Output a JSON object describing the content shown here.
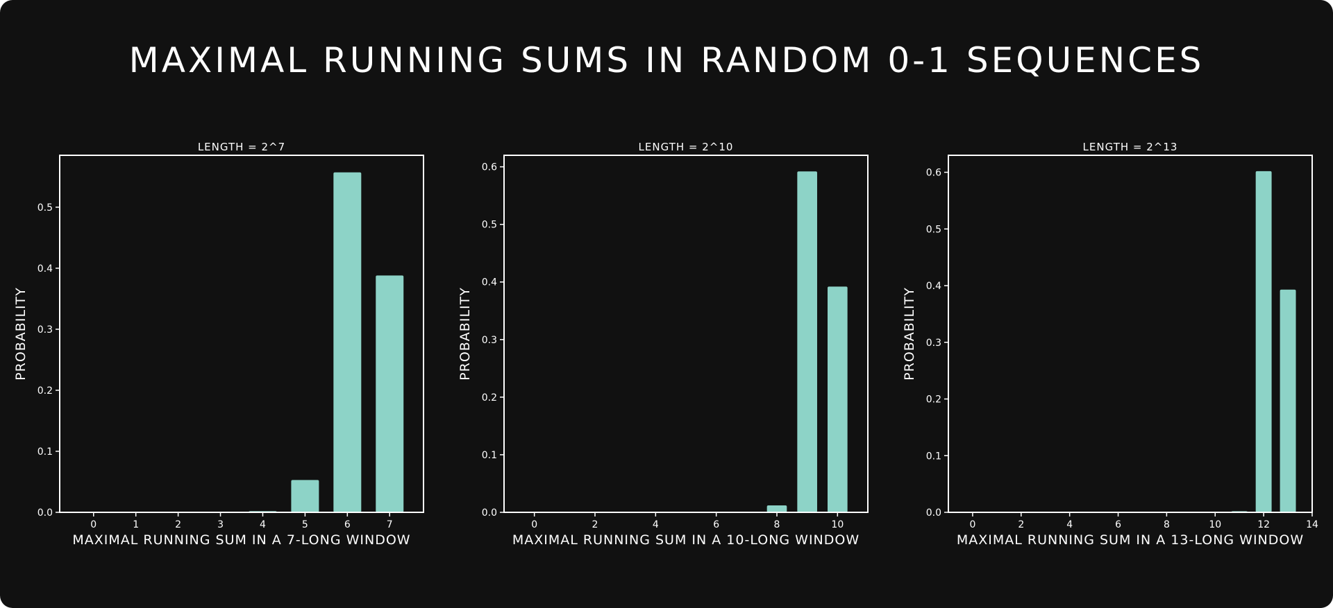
{
  "title": "Maximal running sums in random 0-1 sequences",
  "colors": {
    "background": "#111111",
    "bar": "#8dd3c7",
    "axis": "#ffffff",
    "text": "#ffffff"
  },
  "chart_data": [
    {
      "type": "bar",
      "title": "Length = 2^7",
      "xlabel": "Maximal running sum in a 7-long window",
      "ylabel": "Probability",
      "x": [
        0,
        1,
        2,
        3,
        4,
        5,
        6,
        7
      ],
      "values": [
        0.0,
        0.0,
        0.0,
        0.0,
        0.002,
        0.053,
        0.557,
        0.388
      ],
      "xlim": [
        -0.8,
        7.8
      ],
      "ylim": [
        0,
        0.585
      ],
      "xticks": [
        0,
        1,
        2,
        3,
        4,
        5,
        6,
        7
      ],
      "yticks": [
        0.0,
        0.1,
        0.2,
        0.3,
        0.4,
        0.5
      ],
      "ytick_labels": [
        "0.0",
        "0.1",
        "0.2",
        "0.3",
        "0.4",
        "0.5"
      ],
      "grid": false
    },
    {
      "type": "bar",
      "title": "Length = 2^10",
      "xlabel": "Maximal running sum in a 10-long window",
      "ylabel": "Probability",
      "x": [
        0,
        1,
        2,
        3,
        4,
        5,
        6,
        7,
        8,
        9,
        10
      ],
      "values": [
        0.0,
        0.0,
        0.001,
        0.0,
        0.0,
        0.0,
        0.0,
        0.001,
        0.012,
        0.592,
        0.392
      ],
      "xlim": [
        -1,
        11
      ],
      "ylim": [
        0,
        0.62
      ],
      "xticks": [
        0,
        2,
        4,
        6,
        8,
        10
      ],
      "yticks": [
        0.0,
        0.1,
        0.2,
        0.3,
        0.4,
        0.5,
        0.6
      ],
      "ytick_labels": [
        "0.0",
        "0.1",
        "0.2",
        "0.3",
        "0.4",
        "0.5",
        "0.6"
      ],
      "grid": false
    },
    {
      "type": "bar",
      "title": "Length = 2^13",
      "xlabel": "Maximal running sum in a 13-long window",
      "ylabel": "Probability",
      "x": [
        0,
        1,
        2,
        3,
        4,
        5,
        6,
        7,
        8,
        9,
        10,
        11,
        12,
        13
      ],
      "values": [
        0.0,
        0.0,
        0.0,
        0.0,
        0.0,
        0.0,
        0.001,
        0.0,
        0.0,
        0.0,
        0.0,
        0.002,
        0.602,
        0.393
      ],
      "xlim": [
        -1,
        14
      ],
      "ylim": [
        0,
        0.63
      ],
      "xticks": [
        0,
        2,
        4,
        6,
        8,
        10,
        12,
        14
      ],
      "yticks": [
        0.0,
        0.1,
        0.2,
        0.3,
        0.4,
        0.5,
        0.6
      ],
      "ytick_labels": [
        "0.0",
        "0.1",
        "0.2",
        "0.3",
        "0.4",
        "0.5",
        "0.6"
      ],
      "grid": false
    }
  ]
}
